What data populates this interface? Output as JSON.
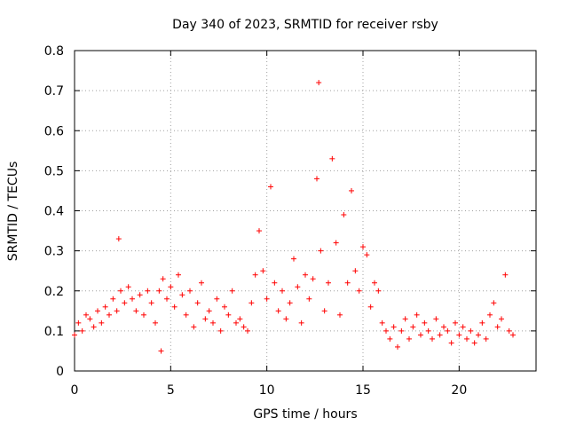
{
  "chart_data": {
    "type": "scatter",
    "title": "Day 340 of 2023, SRMTID for receiver rsby",
    "xlabel": "GPS time / hours",
    "ylabel": "SRMTID / TECUs",
    "xlim": [
      0,
      24
    ],
    "ylim": [
      0,
      0.8
    ],
    "xticks": [
      0,
      5,
      10,
      15,
      20
    ],
    "xtick_labels": [
      "0",
      "5",
      "10",
      "15",
      "20"
    ],
    "yticks": [
      0,
      0.1,
      0.2,
      0.3,
      0.4,
      0.5,
      0.6,
      0.7,
      0.8
    ],
    "ytick_labels": [
      "0",
      "0.1",
      "0.2",
      "0.3",
      "0.4",
      "0.5",
      "0.6",
      "0.7",
      "0.8"
    ],
    "grid": true,
    "marker": "+",
    "color": "#ff0000",
    "series": [
      {
        "name": "rsby",
        "x": [
          0.0,
          0.2,
          0.4,
          0.6,
          0.8,
          1.0,
          1.2,
          1.4,
          1.6,
          1.8,
          2.0,
          2.2,
          2.3,
          2.4,
          2.6,
          2.8,
          3.0,
          3.2,
          3.4,
          3.6,
          3.8,
          4.0,
          4.2,
          4.4,
          4.5,
          4.6,
          4.8,
          5.0,
          5.2,
          5.4,
          5.6,
          5.8,
          6.0,
          6.2,
          6.4,
          6.6,
          6.8,
          7.0,
          7.2,
          7.4,
          7.6,
          7.8,
          8.0,
          8.2,
          8.4,
          8.6,
          8.8,
          9.0,
          9.2,
          9.4,
          9.6,
          9.8,
          10.0,
          10.2,
          10.4,
          10.6,
          10.8,
          11.0,
          11.2,
          11.4,
          11.6,
          11.8,
          12.0,
          12.2,
          12.4,
          12.6,
          12.7,
          12.8,
          13.0,
          13.2,
          13.4,
          13.6,
          13.8,
          14.0,
          14.2,
          14.4,
          14.6,
          14.8,
          15.0,
          15.2,
          15.4,
          15.6,
          15.8,
          16.0,
          16.2,
          16.4,
          16.6,
          16.8,
          17.0,
          17.2,
          17.4,
          17.6,
          17.8,
          18.0,
          18.2,
          18.4,
          18.6,
          18.8,
          19.0,
          19.2,
          19.4,
          19.6,
          19.8,
          20.0,
          20.2,
          20.4,
          20.6,
          20.8,
          21.0,
          21.2,
          21.4,
          21.6,
          21.8,
          22.0,
          22.2,
          22.4,
          22.6,
          22.8
        ],
        "y": [
          0.09,
          0.12,
          0.1,
          0.14,
          0.13,
          0.11,
          0.15,
          0.12,
          0.16,
          0.14,
          0.18,
          0.15,
          0.33,
          0.2,
          0.17,
          0.21,
          0.18,
          0.15,
          0.19,
          0.14,
          0.2,
          0.17,
          0.12,
          0.2,
          0.05,
          0.23,
          0.18,
          0.21,
          0.16,
          0.24,
          0.19,
          0.14,
          0.2,
          0.11,
          0.17,
          0.22,
          0.13,
          0.15,
          0.12,
          0.18,
          0.1,
          0.16,
          0.14,
          0.2,
          0.12,
          0.13,
          0.11,
          0.1,
          0.17,
          0.24,
          0.35,
          0.25,
          0.18,
          0.46,
          0.22,
          0.15,
          0.2,
          0.13,
          0.17,
          0.28,
          0.21,
          0.12,
          0.24,
          0.18,
          0.23,
          0.48,
          0.72,
          0.3,
          0.15,
          0.22,
          0.53,
          0.32,
          0.14,
          0.39,
          0.22,
          0.45,
          0.25,
          0.2,
          0.31,
          0.29,
          0.16,
          0.22,
          0.2,
          0.12,
          0.1,
          0.08,
          0.11,
          0.06,
          0.1,
          0.13,
          0.08,
          0.11,
          0.14,
          0.09,
          0.12,
          0.1,
          0.08,
          0.13,
          0.09,
          0.11,
          0.1,
          0.07,
          0.12,
          0.09,
          0.11,
          0.08,
          0.1,
          0.07,
          0.09,
          0.12,
          0.08,
          0.14,
          0.17,
          0.11,
          0.13,
          0.24,
          0.1,
          0.09
        ]
      }
    ]
  }
}
